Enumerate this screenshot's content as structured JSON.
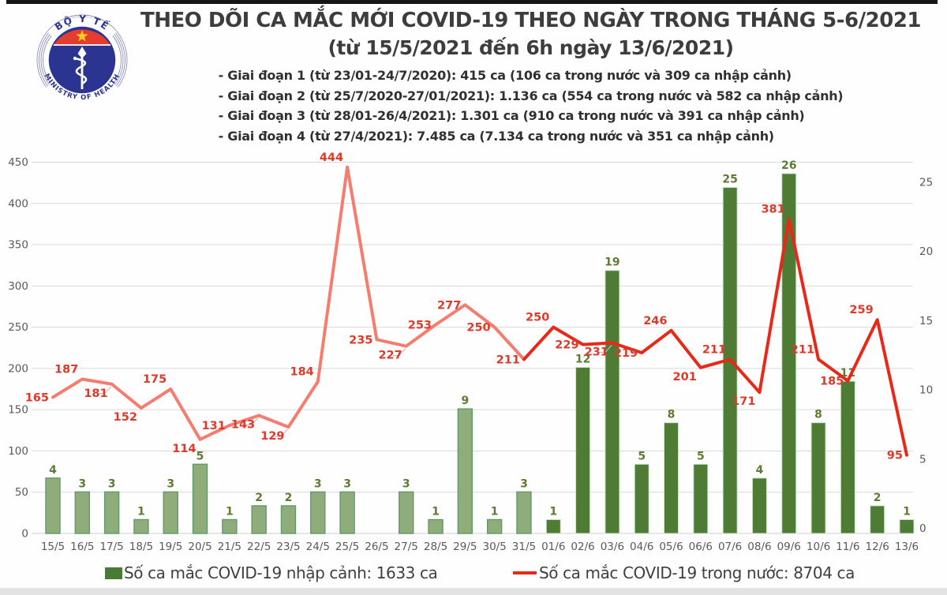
{
  "logo": {
    "arc_top": "BỘ Y TẾ",
    "arc_bottom": "MINISTRY OF HEALTH"
  },
  "header": {
    "title": "THEO DÕI CA MẮC MỚI COVID-19 THEO NGÀY TRONG THÁNG 5-6/2021",
    "subtitle": "(từ 15/5/2021 đến 6h ngày 13/6/2021)",
    "bullets": [
      "- Giai đoạn 1 (từ 23/01-24/7/2020): 415 ca (106 ca trong nước và 309 ca nhập cảnh)",
      "- Giai đoạn 2 (từ 25/7/2020-27/01/2021): 1.136 ca (554 ca trong nước và 582 ca nhập cảnh)",
      "- Giai đoạn 3 (từ 28/01-26/4/2021): 1.301 ca (910 ca trong nước và 391 ca nhập cảnh)",
      "- Giai đoạn 4 (từ 27/4/2021): 7.485 ca (7.134 ca trong nước và 351 ca nhập cảnh)"
    ]
  },
  "legend": {
    "imported": "Số ca mắc COVID-19 nhập cảnh: 1633 ca",
    "domestic": "Số ca mắc COVID-19 trong nước: 8704 ca"
  },
  "colors": {
    "bar_may_fill": "#8fad7a",
    "bar_may_border": "#5f9a68",
    "bar_june_fill": "#4e7c34",
    "bar_june_border": "#cde4cd",
    "line_may": "#f47d70",
    "line_june": "#e8291a",
    "line_label": "#dd3a2b",
    "bar_label": "#5f7a33",
    "axis_text": "#595959",
    "grid": "#d9d9d9",
    "leader": "#bdbdbd",
    "legend_swatch_bar": "#4a7b33",
    "legend_swatch_line": "#e8291a"
  },
  "chart_data": {
    "type": "combo",
    "categories": [
      "15/5",
      "16/5",
      "17/5",
      "18/5",
      "19/5",
      "20/5",
      "21/5",
      "22/5",
      "23/5",
      "24/5",
      "25/5",
      "26/5",
      "27/5",
      "28/5",
      "29/5",
      "30/5",
      "31/5",
      "01/6",
      "02/6",
      "03/6",
      "04/6",
      "05/6",
      "06/6",
      "07/6",
      "08/6",
      "09/6",
      "10/6",
      "11/6",
      "12/6",
      "13/6"
    ],
    "series": [
      {
        "name": "Số ca mắc COVID-19 nhập cảnh",
        "type": "bar",
        "axis": "right",
        "values": [
          4,
          3,
          3,
          1,
          3,
          5,
          1,
          2,
          2,
          3,
          3,
          0,
          3,
          1,
          9,
          1,
          3,
          1,
          12,
          19,
          5,
          8,
          5,
          25,
          4,
          26,
          8,
          11,
          2,
          1
        ]
      },
      {
        "name": "Số ca mắc COVID-19 trong nước",
        "type": "line",
        "axis": "left",
        "values": [
          165,
          187,
          181,
          152,
          175,
          114,
          131,
          143,
          129,
          184,
          444,
          235,
          227,
          253,
          277,
          250,
          211,
          250,
          229,
          231,
          219,
          246,
          201,
          211,
          171,
          381,
          211,
          185,
          259,
          95
        ]
      }
    ],
    "left_axis": {
      "min": 0,
      "max": 450,
      "step": 50
    },
    "right_axis": {
      "min": 0,
      "max": 25,
      "step": 5
    },
    "style_split_last_light_index": 16,
    "grid": "horizontal",
    "legend_position": "bottom"
  }
}
